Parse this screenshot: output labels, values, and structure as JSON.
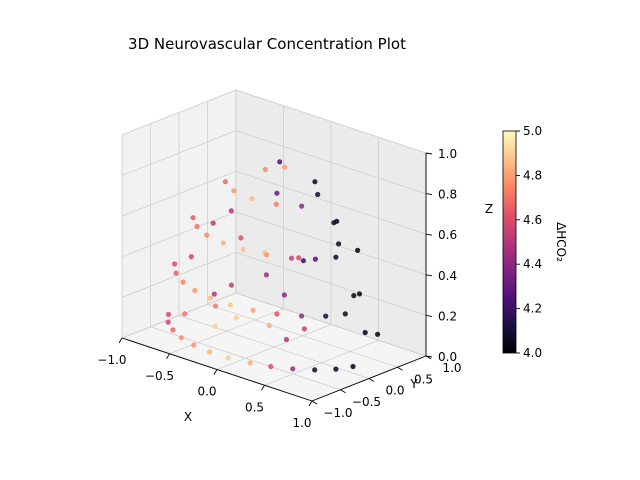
{
  "chart_data": {
    "type": "scatter",
    "title": "3D Neurovascular Concentration Plot",
    "xlabel": "X",
    "ylabel": "Y",
    "zlabel": "Z",
    "xlim": [
      -1.0,
      1.0
    ],
    "ylim": [
      -1.0,
      1.0
    ],
    "zlim": [
      0.0,
      1.0
    ],
    "x_ticks": [
      "−1.0",
      "−0.5",
      "0.0",
      "0.5",
      "1.0"
    ],
    "y_ticks": [
      "−1.0",
      "−0.5",
      "0.0",
      "0.5",
      "1.0"
    ],
    "z_ticks": [
      "0.0",
      "0.2",
      "0.4",
      "0.6",
      "0.8",
      "1.0"
    ],
    "colorbar": {
      "label": "ΔHCO₂",
      "range": [
        4.0,
        5.0
      ],
      "ticks": [
        "4.0",
        "4.2",
        "4.4",
        "4.6",
        "4.8",
        "5.0"
      ],
      "colormap": "magma"
    },
    "grid": true,
    "points": [
      {
        "x": -0.87,
        "y": -0.4,
        "z": 0.07,
        "c": 4.59
      },
      {
        "x": -0.76,
        "y": -0.59,
        "z": 0.07,
        "c": 4.58
      },
      {
        "x": -0.62,
        "y": -0.74,
        "z": 0.07,
        "c": 4.67
      },
      {
        "x": -0.46,
        "y": -0.86,
        "z": 0.07,
        "c": 4.76
      },
      {
        "x": -0.28,
        "y": -0.94,
        "z": 0.07,
        "c": 4.78
      },
      {
        "x": -0.09,
        "y": -0.98,
        "z": 0.07,
        "c": 4.84
      },
      {
        "x": 0.1,
        "y": -0.97,
        "z": 0.07,
        "c": 4.89
      },
      {
        "x": 0.3,
        "y": -0.92,
        "z": 0.07,
        "c": 4.82
      },
      {
        "x": 0.47,
        "y": -0.84,
        "z": 0.07,
        "c": 4.61
      },
      {
        "x": 0.63,
        "y": -0.72,
        "z": 0.07,
        "c": 4.42
      },
      {
        "x": 0.77,
        "y": -0.57,
        "z": 0.07,
        "c": 4.06
      },
      {
        "x": 0.88,
        "y": -0.38,
        "z": 0.07,
        "c": 4.05
      },
      {
        "x": 0.94,
        "y": -0.18,
        "z": 0.07,
        "c": 4.03
      },
      {
        "x": -0.83,
        "y": -0.36,
        "z": 0.32,
        "c": 4.6
      },
      {
        "x": -0.69,
        "y": -0.57,
        "z": 0.32,
        "c": 4.66
      },
      {
        "x": -0.52,
        "y": -0.73,
        "z": 0.32,
        "c": 4.74
      },
      {
        "x": -0.33,
        "y": -0.84,
        "z": 0.32,
        "c": 4.79
      },
      {
        "x": -0.13,
        "y": -0.9,
        "z": 0.32,
        "c": 4.86
      },
      {
        "x": 0.08,
        "y": -0.9,
        "z": 0.32,
        "c": 4.88
      },
      {
        "x": 0.29,
        "y": -0.85,
        "z": 0.32,
        "c": 4.81
      },
      {
        "x": 0.48,
        "y": -0.75,
        "z": 0.32,
        "c": 4.62
      },
      {
        "x": 0.65,
        "y": -0.6,
        "z": 0.32,
        "c": 4.4
      },
      {
        "x": 0.79,
        "y": -0.41,
        "z": 0.32,
        "c": 4.1
      },
      {
        "x": 0.87,
        "y": -0.2,
        "z": 0.32,
        "c": 4.04
      },
      {
        "x": -0.66,
        "y": -0.32,
        "z": 0.57,
        "c": 4.64
      },
      {
        "x": -0.51,
        "y": -0.5,
        "z": 0.57,
        "c": 4.7
      },
      {
        "x": -0.33,
        "y": -0.63,
        "z": 0.57,
        "c": 4.76
      },
      {
        "x": -0.12,
        "y": -0.69,
        "z": 0.57,
        "c": 4.84
      },
      {
        "x": 0.09,
        "y": -0.69,
        "z": 0.57,
        "c": 4.87
      },
      {
        "x": 0.3,
        "y": -0.63,
        "z": 0.57,
        "c": 4.78
      },
      {
        "x": 0.49,
        "y": -0.51,
        "z": 0.57,
        "c": 4.56
      },
      {
        "x": 0.64,
        "y": -0.34,
        "z": 0.57,
        "c": 4.25
      },
      {
        "x": 0.73,
        "y": -0.13,
        "z": 0.57,
        "c": 4.06
      },
      {
        "x": -0.38,
        "y": -0.22,
        "z": 0.78,
        "c": 4.68
      },
      {
        "x": -0.2,
        "y": -0.37,
        "z": 0.78,
        "c": 4.78
      },
      {
        "x": 0.02,
        "y": -0.42,
        "z": 0.78,
        "c": 4.86
      },
      {
        "x": 0.24,
        "y": -0.36,
        "z": 0.78,
        "c": 4.72
      },
      {
        "x": 0.41,
        "y": -0.2,
        "z": 0.78,
        "c": 4.4
      },
      {
        "x": -0.52,
        "y": -0.18,
        "z": 0.2,
        "c": 4.5
      },
      {
        "x": -0.34,
        "y": -0.46,
        "z": 0.2,
        "c": 4.72
      },
      {
        "x": -0.05,
        "y": -0.58,
        "z": 0.2,
        "c": 4.9
      },
      {
        "x": 0.25,
        "y": -0.5,
        "z": 0.2,
        "c": 4.83
      },
      {
        "x": 0.5,
        "y": -0.3,
        "z": 0.2,
        "c": 4.55
      },
      {
        "x": -0.3,
        "y": -0.08,
        "z": 0.5,
        "c": 4.62
      },
      {
        "x": 0.05,
        "y": -0.25,
        "z": 0.5,
        "c": 4.88
      },
      {
        "x": 0.32,
        "y": -0.1,
        "z": 0.5,
        "c": 4.6
      },
      {
        "x": -0.12,
        "y": 0.05,
        "z": 0.85,
        "c": 4.75
      },
      {
        "x": 0.1,
        "y": 0.02,
        "z": 0.9,
        "c": 4.8
      },
      {
        "x": -0.7,
        "y": 0.42,
        "z": 0.15,
        "c": 4.55
      },
      {
        "x": -0.5,
        "y": 0.7,
        "z": 0.2,
        "c": 4.45
      },
      {
        "x": -0.2,
        "y": 0.85,
        "z": 0.3,
        "c": 4.2
      },
      {
        "x": 0.2,
        "y": 0.8,
        "z": 0.45,
        "c": 4.05
      },
      {
        "x": 0.55,
        "y": 0.55,
        "z": 0.5,
        "c": 4.02
      },
      {
        "x": 0.75,
        "y": 0.25,
        "z": 0.35,
        "c": 4.03
      },
      {
        "x": -0.6,
        "y": 0.25,
        "z": 0.55,
        "c": 4.5
      },
      {
        "x": -0.3,
        "y": 0.55,
        "z": 0.65,
        "c": 4.3
      },
      {
        "x": 0.1,
        "y": 0.6,
        "z": 0.7,
        "c": 4.08
      },
      {
        "x": 0.45,
        "y": 0.35,
        "z": 0.65,
        "c": 4.04
      },
      {
        "x": 0.6,
        "y": 0.05,
        "z": 0.7,
        "c": 4.05
      },
      {
        "x": -0.15,
        "y": 0.35,
        "z": 0.85,
        "c": 4.25
      },
      {
        "x": 0.25,
        "y": 0.3,
        "z": 0.82,
        "c": 4.06
      },
      {
        "x": -0.9,
        "y": 0.05,
        "z": 0.3,
        "c": 4.58
      },
      {
        "x": -0.82,
        "y": 0.3,
        "z": 0.45,
        "c": 4.52
      },
      {
        "x": 0.9,
        "y": 0.1,
        "z": 0.2,
        "c": 4.02
      },
      {
        "x": 0.85,
        "y": 0.4,
        "z": 0.15,
        "c": 4.01
      },
      {
        "x": 0.3,
        "y": 0.9,
        "z": 0.2,
        "c": 4.03
      },
      {
        "x": -0.4,
        "y": 0.85,
        "z": 0.1,
        "c": 4.4
      },
      {
        "x": -0.05,
        "y": -0.95,
        "z": 0.2,
        "c": 4.9
      },
      {
        "x": -0.55,
        "y": -0.65,
        "z": 0.15,
        "c": 4.7
      },
      {
        "x": 0.55,
        "y": -0.7,
        "z": 0.2,
        "c": 4.5
      }
    ]
  }
}
